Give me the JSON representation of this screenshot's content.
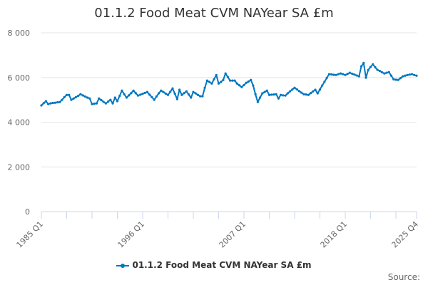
{
  "chart_data": {
    "type": "line",
    "title": "01.1.2 Food Meat CVM NAYear SA £m",
    "xlabel": "",
    "ylabel": "",
    "x_start": "1985 Q1",
    "x_end": "2025 Q4",
    "x_step": "quarter",
    "x_tick_labels": [
      {
        "index": 0,
        "label": "1985 Q1"
      },
      {
        "index": 44,
        "label": "1996 Q1"
      },
      {
        "index": 88,
        "label": "2007 Q1"
      },
      {
        "index": 132,
        "label": "2018 Q1"
      },
      {
        "index": 163,
        "label": "2025 Q4"
      }
    ],
    "x_minor_tick_every": 11,
    "y_ticks": [
      {
        "value": 0,
        "label": "0"
      },
      {
        "value": 2000,
        "label": "2 000"
      },
      {
        "value": 4000,
        "label": "4 000"
      },
      {
        "value": 6000,
        "label": "6 000"
      },
      {
        "value": 8000,
        "label": "8 000"
      }
    ],
    "ylim": [
      0,
      8000
    ],
    "grid": true,
    "legend_position": "bottom",
    "series": [
      {
        "name": "01.1.2 Food Meat CVM NAYear SA £m",
        "color": "#0077c0",
        "values": [
          4750,
          4850,
          4940,
          4810,
          4840,
          4860,
          4870,
          4890,
          4900,
          5000,
          5120,
          5220,
          5220,
          5000,
          5060,
          5120,
          5180,
          5250,
          5200,
          5150,
          5100,
          5060,
          4810,
          4830,
          4840,
          5060,
          4990,
          4910,
          4840,
          4920,
          5000,
          4840,
          5100,
          4940,
          5180,
          5410,
          5250,
          5100,
          5200,
          5300,
          5410,
          5300,
          5190,
          5230,
          5270,
          5310,
          5350,
          5230,
          5120,
          5000,
          5150,
          5290,
          5410,
          5350,
          5280,
          5220,
          5360,
          5510,
          5270,
          5030,
          5450,
          5220,
          5300,
          5380,
          5240,
          5100,
          5350,
          5290,
          5220,
          5160,
          5160,
          5540,
          5860,
          5800,
          5730,
          5920,
          6110,
          5730,
          5800,
          5890,
          6180,
          6020,
          5860,
          5860,
          5860,
          5730,
          5650,
          5570,
          5660,
          5760,
          5820,
          5890,
          5640,
          5250,
          4900,
          5100,
          5290,
          5350,
          5410,
          5220,
          5230,
          5240,
          5250,
          5060,
          5220,
          5200,
          5190,
          5290,
          5380,
          5460,
          5540,
          5470,
          5390,
          5320,
          5250,
          5240,
          5220,
          5300,
          5380,
          5450,
          5290,
          5460,
          5640,
          5810,
          5980,
          6150,
          6140,
          6120,
          6110,
          6150,
          6180,
          6150,
          6110,
          6160,
          6210,
          6170,
          6130,
          6090,
          6050,
          6500,
          6650,
          5990,
          6340,
          6470,
          6590,
          6460,
          6340,
          6290,
          6230,
          6180,
          6210,
          6240,
          6080,
          5920,
          5900,
          5890,
          5970,
          6050,
          6080,
          6110,
          6130,
          6150,
          6110,
          6080
        ]
      }
    ]
  },
  "footer": {
    "source_label": "Source:"
  }
}
